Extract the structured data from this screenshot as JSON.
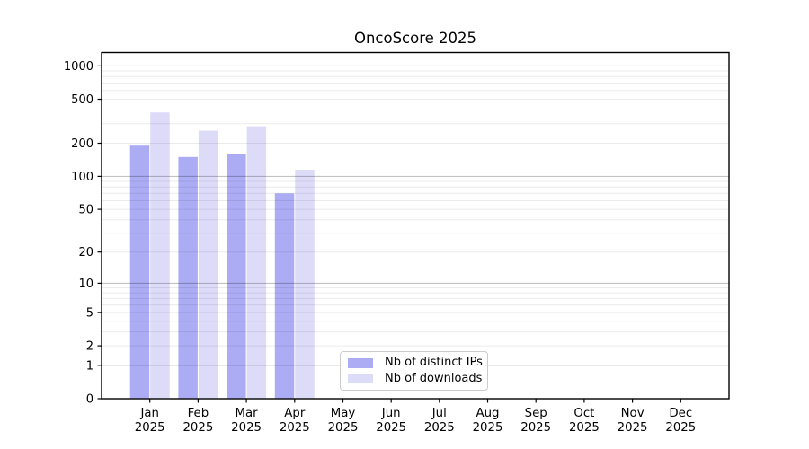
{
  "chart_data": {
    "type": "bar",
    "title": "OncoScore 2025",
    "categories": [
      "Jan",
      "Feb",
      "Mar",
      "Apr",
      "May",
      "Jun",
      "Jul",
      "Aug",
      "Sep",
      "Oct",
      "Nov",
      "Dec"
    ],
    "year_label": "2025",
    "series": [
      {
        "name": "Nb of distinct IPs",
        "color": "#abacf4",
        "values": [
          190,
          150,
          160,
          70,
          null,
          null,
          null,
          null,
          null,
          null,
          null,
          null
        ]
      },
      {
        "name": "Nb of downloads",
        "color": "#dcdcf9",
        "values": [
          380,
          260,
          285,
          115,
          null,
          null,
          null,
          null,
          null,
          null,
          null,
          null
        ]
      }
    ],
    "yticks": [
      0,
      1,
      2,
      5,
      10,
      20,
      50,
      100,
      200,
      500,
      1000
    ],
    "scale": "log1p",
    "ylim": [
      0,
      1320
    ],
    "grid": {
      "major_ticks": [
        1,
        10,
        100,
        1000
      ],
      "minor_multipliers": [
        2,
        3,
        4,
        5,
        6,
        7,
        8,
        9
      ],
      "minor_decades": [
        1,
        10,
        100
      ],
      "major_color": "rgba(0,0,0,0.24)",
      "minor_color": "rgba(0,0,0,0.08)"
    },
    "axis_color": "#000000",
    "legend_position": "lower center-left"
  }
}
